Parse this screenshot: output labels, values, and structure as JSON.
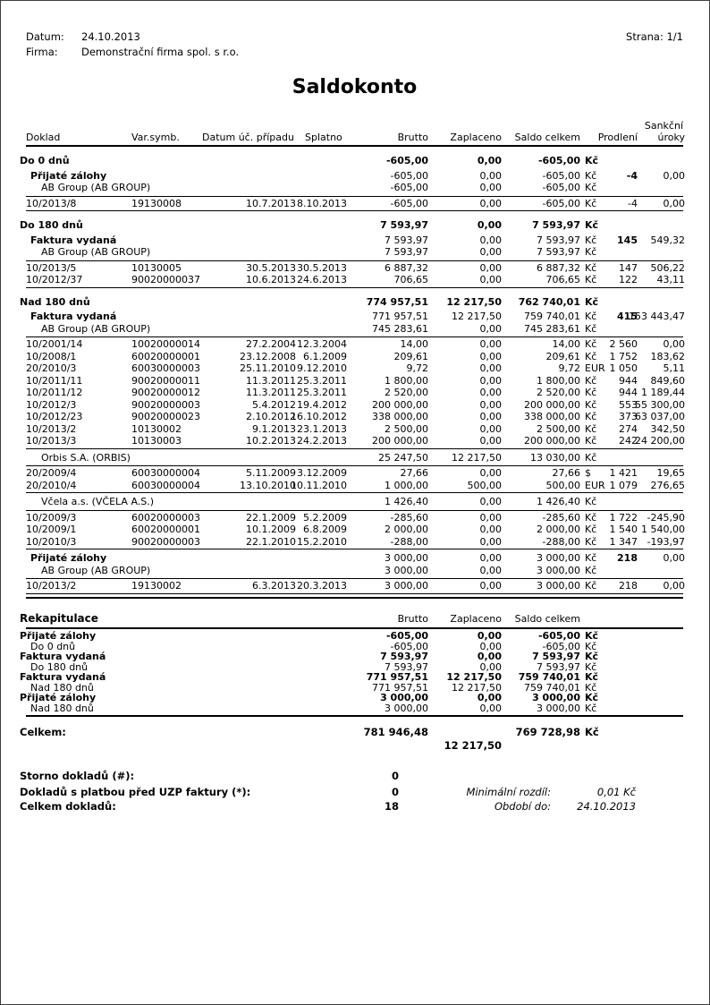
{
  "colors": {
    "text": "#000000",
    "background": "#ffffff",
    "rule": "#000000"
  },
  "header": {
    "date_label": "Datum:",
    "date_value": "24.10.2013",
    "firm_label": "Firma:",
    "firm_value": "Demonstrační firma spol. s r.o.",
    "page_info": "Strana: 1/1"
  },
  "title": "Saldokonto",
  "main_table": {
    "headers": {
      "sankcni": "Sankční",
      "doklad": "Doklad",
      "varsymb": "Var.symb.",
      "datum": "Datum úč. případu",
      "splatno": "Splatno",
      "brutto": "Brutto",
      "zaplaceno": "Zaplaceno",
      "saldo": "Saldo celkem",
      "prodleni": "Prodlení",
      "uroky": "úroky"
    },
    "sections": [
      {
        "label": "Do 0 dnů",
        "brutto": "-605,00",
        "zaplaceno": "0,00",
        "saldo": "-605,00",
        "currency": "Kč",
        "groups": [
          {
            "label": "Přijaté zálohy",
            "brutto": "-605,00",
            "zaplaceno": "0,00",
            "saldo": "-605,00",
            "currency": "Kč",
            "prodleni": "-4",
            "uroky": "0,00",
            "customers": [
              {
                "name": "AB Group (AB GROUP)",
                "brutto": "-605,00",
                "zaplaceno": "0,00",
                "saldo": "-605,00",
                "currency": "Kč",
                "details": [
                  {
                    "doklad": "10/2013/8",
                    "varsymb": "19130008",
                    "datum": "10.7.2013",
                    "splatno": "8.10.2013",
                    "brutto": "-605,00",
                    "zaplaceno": "0,00",
                    "saldo": "-605,00",
                    "currency": "Kč",
                    "prodleni": "-4",
                    "uroky": "0,00"
                  }
                ]
              }
            ]
          }
        ]
      },
      {
        "label": "Do 180 dnů",
        "brutto": "7 593,97",
        "zaplaceno": "0,00",
        "saldo": "7 593,97",
        "currency": "Kč",
        "groups": [
          {
            "label": "Faktura vydaná",
            "brutto": "7 593,97",
            "zaplaceno": "0,00",
            "saldo": "7 593,97",
            "currency": "Kč",
            "prodleni": "145",
            "uroky": "549,32",
            "customers": [
              {
                "name": "AB Group (AB GROUP)",
                "brutto": "7 593,97",
                "zaplaceno": "0,00",
                "saldo": "7 593,97",
                "currency": "Kč",
                "details": [
                  {
                    "doklad": "10/2013/5",
                    "varsymb": "10130005",
                    "datum": "30.5.2013",
                    "splatno": "30.5.2013",
                    "brutto": "6 887,32",
                    "zaplaceno": "0,00",
                    "saldo": "6 887,32",
                    "currency": "Kč",
                    "prodleni": "147",
                    "uroky": "506,22"
                  },
                  {
                    "doklad": "10/2012/37",
                    "varsymb": "90020000037",
                    "datum": "10.6.2013",
                    "splatno": "24.6.2013",
                    "brutto": "706,65",
                    "zaplaceno": "0,00",
                    "saldo": "706,65",
                    "currency": "Kč",
                    "prodleni": "122",
                    "uroky": "43,11"
                  }
                ]
              }
            ]
          }
        ]
      },
      {
        "label": "Nad 180 dnů",
        "brutto": "774 957,51",
        "zaplaceno": "12 217,50",
        "saldo": "762 740,01",
        "currency": "Kč",
        "groups": [
          {
            "label": "Faktura vydaná",
            "brutto": "771 957,51",
            "zaplaceno": "12 217,50",
            "saldo": "759 740,01",
            "currency": "Kč",
            "prodleni": "415",
            "uroky": "153 443,47",
            "customers": [
              {
                "name": "AB Group (AB GROUP)",
                "brutto": "745 283,61",
                "zaplaceno": "0,00",
                "saldo": "745 283,61",
                "currency": "Kč",
                "details": [
                  {
                    "doklad": "10/2001/14",
                    "varsymb": "10020000014",
                    "datum": "27.2.2004",
                    "splatno": "12.3.2004",
                    "brutto": "14,00",
                    "zaplaceno": "0,00",
                    "saldo": "14,00",
                    "currency": "Kč",
                    "prodleni": "2 560",
                    "uroky": "0,00"
                  },
                  {
                    "doklad": "10/2008/1",
                    "varsymb": "60020000001",
                    "datum": "23.12.2008",
                    "splatno": "6.1.2009",
                    "brutto": "209,61",
                    "zaplaceno": "0,00",
                    "saldo": "209,61",
                    "currency": "Kč",
                    "prodleni": "1 752",
                    "uroky": "183,62"
                  },
                  {
                    "doklad": "20/2010/3",
                    "varsymb": "60030000003",
                    "datum": "25.11.2010",
                    "splatno": "9.12.2010",
                    "brutto": "9,72",
                    "zaplaceno": "0,00",
                    "saldo": "9,72",
                    "currency": "EUR",
                    "prodleni": "1 050",
                    "uroky": "5,11"
                  },
                  {
                    "doklad": "10/2011/11",
                    "varsymb": "90020000011",
                    "datum": "11.3.2011",
                    "splatno": "25.3.2011",
                    "brutto": "1 800,00",
                    "zaplaceno": "0,00",
                    "saldo": "1 800,00",
                    "currency": "Kč",
                    "prodleni": "944",
                    "uroky": "849,60"
                  },
                  {
                    "doklad": "10/2011/12",
                    "varsymb": "90020000012",
                    "datum": "11.3.2011",
                    "splatno": "25.3.2011",
                    "brutto": "2 520,00",
                    "zaplaceno": "0,00",
                    "saldo": "2 520,00",
                    "currency": "Kč",
                    "prodleni": "944",
                    "uroky": "1 189,44"
                  },
                  {
                    "doklad": "10/2012/3",
                    "varsymb": "90020000003",
                    "datum": "5.4.2012",
                    "splatno": "19.4.2012",
                    "brutto": "200 000,00",
                    "zaplaceno": "0,00",
                    "saldo": "200 000,00",
                    "currency": "Kč",
                    "prodleni": "553",
                    "uroky": "55 300,00"
                  },
                  {
                    "doklad": "10/2012/23",
                    "varsymb": "90020000023",
                    "datum": "2.10.2012",
                    "splatno": "16.10.2012",
                    "brutto": "338 000,00",
                    "zaplaceno": "0,00",
                    "saldo": "338 000,00",
                    "currency": "Kč",
                    "prodleni": "373",
                    "uroky": "63 037,00"
                  },
                  {
                    "doklad": "10/2013/2",
                    "varsymb": "10130002",
                    "datum": "9.1.2013",
                    "splatno": "23.1.2013",
                    "brutto": "2 500,00",
                    "zaplaceno": "0,00",
                    "saldo": "2 500,00",
                    "currency": "Kč",
                    "prodleni": "274",
                    "uroky": "342,50"
                  },
                  {
                    "doklad": "10/2013/3",
                    "varsymb": "10130003",
                    "datum": "10.2.2013",
                    "splatno": "24.2.2013",
                    "brutto": "200 000,00",
                    "zaplaceno": "0,00",
                    "saldo": "200 000,00",
                    "currency": "Kč",
                    "prodleni": "242",
                    "uroky": "24 200,00"
                  }
                ]
              },
              {
                "name": "Orbis S.A. (ORBIS)",
                "brutto": "25 247,50",
                "zaplaceno": "12 217,50",
                "saldo": "13 030,00",
                "currency": "Kč",
                "details": [
                  {
                    "doklad": "20/2009/4",
                    "varsymb": "60030000004",
                    "datum": "5.11.2009",
                    "splatno": "3.12.2009",
                    "brutto": "27,66",
                    "zaplaceno": "0,00",
                    "saldo": "27,66",
                    "currency": "$",
                    "prodleni": "1 421",
                    "uroky": "19,65"
                  },
                  {
                    "doklad": "20/2010/4",
                    "varsymb": "60030000004",
                    "datum": "13.10.2010",
                    "splatno": "10.11.2010",
                    "brutto": "1 000,00",
                    "zaplaceno": "500,00",
                    "saldo": "500,00",
                    "currency": "EUR",
                    "prodleni": "1 079",
                    "uroky": "276,65"
                  }
                ]
              },
              {
                "name": "Včela a.s. (VČELA A.S.)",
                "brutto": "1 426,40",
                "zaplaceno": "0,00",
                "saldo": "1 426,40",
                "currency": "Kč",
                "details": [
                  {
                    "doklad": "10/2009/3",
                    "varsymb": "60020000003",
                    "datum": "22.1.2009",
                    "splatno": "5.2.2009",
                    "brutto": "-285,60",
                    "zaplaceno": "0,00",
                    "saldo": "-285,60",
                    "currency": "Kč",
                    "prodleni": "1 722",
                    "uroky": "-245,90"
                  },
                  {
                    "doklad": "10/2009/1",
                    "varsymb": "60020000001",
                    "datum": "10.1.2009",
                    "splatno": "6.8.2009",
                    "brutto": "2 000,00",
                    "zaplaceno": "0,00",
                    "saldo": "2 000,00",
                    "currency": "Kč",
                    "prodleni": "1 540",
                    "uroky": "1 540,00"
                  },
                  {
                    "doklad": "10/2010/3",
                    "varsymb": "90020000003",
                    "datum": "22.1.2010",
                    "splatno": "15.2.2010",
                    "brutto": "-288,00",
                    "zaplaceno": "0,00",
                    "saldo": "-288,00",
                    "currency": "Kč",
                    "prodleni": "1 347",
                    "uroky": "-193,97"
                  }
                ]
              }
            ]
          },
          {
            "label": "Přijaté zálohy",
            "brutto": "3 000,00",
            "zaplaceno": "0,00",
            "saldo": "3 000,00",
            "currency": "Kč",
            "prodleni": "218",
            "uroky": "0,00",
            "customers": [
              {
                "name": "AB Group (AB GROUP)",
                "brutto": "3 000,00",
                "zaplaceno": "0,00",
                "saldo": "3 000,00",
                "currency": "Kč",
                "details": [
                  {
                    "doklad": "10/2013/2",
                    "varsymb": "19130002",
                    "datum": "6.3.2013",
                    "splatno": "20.3.2013",
                    "brutto": "3 000,00",
                    "zaplaceno": "0,00",
                    "saldo": "3 000,00",
                    "currency": "Kč",
                    "prodleni": "218",
                    "uroky": "0,00"
                  }
                ]
              }
            ]
          }
        ]
      }
    ]
  },
  "rekapitulace": {
    "label": "Rekapitulace",
    "headers": {
      "brutto": "Brutto",
      "zaplaceno": "Zaplaceno",
      "saldo": "Saldo celkem"
    },
    "rows": [
      {
        "kind": "type",
        "label": "Přijaté zálohy",
        "brutto": "-605,00",
        "zaplaceno": "0,00",
        "saldo": "-605,00",
        "currency": "Kč"
      },
      {
        "kind": "bucket",
        "label": "Do 0 dnů",
        "brutto": "-605,00",
        "zaplaceno": "0,00",
        "saldo": "-605,00",
        "currency": "Kč"
      },
      {
        "kind": "type",
        "label": "Faktura vydaná",
        "brutto": "7 593,97",
        "zaplaceno": "0,00",
        "saldo": "7 593,97",
        "currency": "Kč"
      },
      {
        "kind": "bucket",
        "label": "Do 180 dnů",
        "brutto": "7 593,97",
        "zaplaceno": "0,00",
        "saldo": "7 593,97",
        "currency": "Kč"
      },
      {
        "kind": "type",
        "label": "Faktura vydaná",
        "brutto": "771 957,51",
        "zaplaceno": "12 217,50",
        "saldo": "759 740,01",
        "currency": "Kč"
      },
      {
        "kind": "bucket",
        "label": "Nad 180 dnů",
        "brutto": "771 957,51",
        "zaplaceno": "12 217,50",
        "saldo": "759 740,01",
        "currency": "Kč"
      },
      {
        "kind": "type",
        "label": "Přijaté zálohy",
        "brutto": "3 000,00",
        "zaplaceno": "0,00",
        "saldo": "3 000,00",
        "currency": "Kč"
      },
      {
        "kind": "bucket",
        "label": "Nad 180 dnů",
        "brutto": "3 000,00",
        "zaplaceno": "0,00",
        "saldo": "3 000,00",
        "currency": "Kč"
      }
    ]
  },
  "totals": {
    "label": "Celkem:",
    "brutto": "781 946,48",
    "zaplaceno": "12 217,50",
    "saldo": "769 728,98",
    "currency": "Kč"
  },
  "summary": [
    {
      "label": "Storno dokladů (#):",
      "value": "0",
      "note_label": "",
      "note_value": ""
    },
    {
      "label": "Dokladů s platbou před UZP faktury (*):",
      "value": "0",
      "note_label": "Minimální rozdíl:",
      "note_value": "0,01  Kč"
    },
    {
      "label": "Celkem dokladů:",
      "value": "18",
      "note_label": "Období do:",
      "note_value": "24.10.2013"
    }
  ]
}
